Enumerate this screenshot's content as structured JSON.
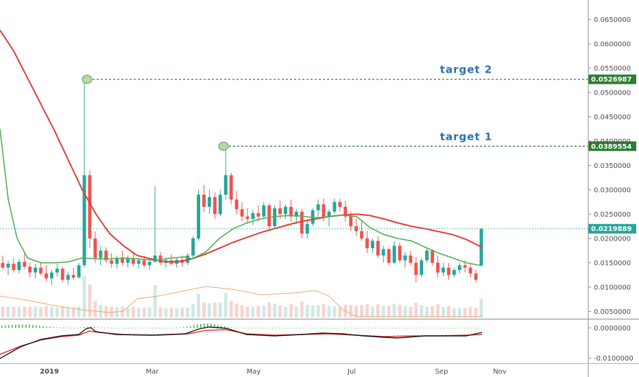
{
  "chart_data": {
    "type": "candlestick",
    "xaxis": {
      "ticks": [
        "2019",
        "Mar",
        "May",
        "Jul",
        "Sep",
        "Nov"
      ]
    },
    "price_axis": {
      "ticks": [
        "0.0650000",
        "0.0600000",
        "0.0550000",
        "0.0500000",
        "0.0450000",
        "0.0400000",
        "0.0350000",
        "0.0300000",
        "0.0250000",
        "0.0200000",
        "0.0150000",
        "0.0100000",
        "0.0050000"
      ],
      "range": [
        0.0035,
        0.069
      ]
    },
    "macd_axis": {
      "ticks": [
        "0.0000000",
        "-0.0100000"
      ]
    },
    "current_price": {
      "value": 0.0219889,
      "label": "0.0219889",
      "color": "#26a69a"
    },
    "targets": [
      {
        "name": "target 2",
        "value": 0.0526987,
        "label": "0.0526987",
        "color": "#2e7d32"
      },
      {
        "name": "target 1",
        "value": 0.0389554,
        "label": "0.0389554",
        "color": "#2e7d32"
      }
    ],
    "ma_fast_color": "#4caf50",
    "ma_slow_color": "#e53935",
    "bull_color": "#26a69a",
    "bear_color": "#ef5350",
    "candles": [
      [
        0.015,
        0.0165,
        0.0135,
        0.014
      ],
      [
        0.014,
        0.0155,
        0.0125,
        0.0148
      ],
      [
        0.0148,
        0.016,
        0.013,
        0.0135
      ],
      [
        0.0135,
        0.0158,
        0.0128,
        0.0152
      ],
      [
        0.0152,
        0.0168,
        0.0138,
        0.0142
      ],
      [
        0.0142,
        0.015,
        0.012,
        0.013
      ],
      [
        0.013,
        0.0148,
        0.0118,
        0.014
      ],
      [
        0.014,
        0.0152,
        0.0125,
        0.0128
      ],
      [
        0.0128,
        0.0145,
        0.0112,
        0.0118
      ],
      [
        0.0118,
        0.0135,
        0.0105,
        0.013
      ],
      [
        0.013,
        0.0148,
        0.0122,
        0.0138
      ],
      [
        0.0138,
        0.0142,
        0.011,
        0.0115
      ],
      [
        0.0115,
        0.0132,
        0.0105,
        0.0125
      ],
      [
        0.0125,
        0.014,
        0.0115,
        0.012
      ],
      [
        0.012,
        0.015,
        0.0118,
        0.0145
      ],
      [
        0.0145,
        0.0528,
        0.014,
        0.033
      ],
      [
        0.033,
        0.034,
        0.018,
        0.02
      ],
      [
        0.02,
        0.0215,
        0.015,
        0.016
      ],
      [
        0.016,
        0.0185,
        0.0145,
        0.0175
      ],
      [
        0.0175,
        0.0182,
        0.015,
        0.0155
      ],
      [
        0.0155,
        0.017,
        0.014,
        0.0148
      ],
      [
        0.0148,
        0.0165,
        0.0138,
        0.016
      ],
      [
        0.016,
        0.0175,
        0.0145,
        0.015
      ],
      [
        0.015,
        0.0165,
        0.014,
        0.0158
      ],
      [
        0.0158,
        0.0172,
        0.0142,
        0.0148
      ],
      [
        0.0148,
        0.016,
        0.0138,
        0.0155
      ],
      [
        0.0155,
        0.0165,
        0.014,
        0.0145
      ],
      [
        0.0145,
        0.016,
        0.0135,
        0.0152
      ],
      [
        0.0152,
        0.0308,
        0.015,
        0.0165
      ],
      [
        0.0165,
        0.0172,
        0.0145,
        0.015
      ],
      [
        0.015,
        0.0162,
        0.014,
        0.0155
      ],
      [
        0.0155,
        0.0168,
        0.0145,
        0.0148
      ],
      [
        0.0148,
        0.016,
        0.014,
        0.0156
      ],
      [
        0.0156,
        0.0165,
        0.0142,
        0.015
      ],
      [
        0.015,
        0.017,
        0.0145,
        0.0165
      ],
      [
        0.0165,
        0.0205,
        0.016,
        0.02
      ],
      [
        0.02,
        0.03,
        0.0195,
        0.029
      ],
      [
        0.029,
        0.031,
        0.0255,
        0.0265
      ],
      [
        0.0265,
        0.03,
        0.025,
        0.0285
      ],
      [
        0.0285,
        0.0295,
        0.024,
        0.025
      ],
      [
        0.025,
        0.03,
        0.0245,
        0.029
      ],
      [
        0.029,
        0.039,
        0.028,
        0.033
      ],
      [
        0.033,
        0.0335,
        0.027,
        0.028
      ],
      [
        0.028,
        0.0298,
        0.025,
        0.026
      ],
      [
        0.026,
        0.0275,
        0.0235,
        0.0245
      ],
      [
        0.0245,
        0.0262,
        0.023,
        0.024
      ],
      [
        0.024,
        0.0258,
        0.0228,
        0.0252
      ],
      [
        0.0252,
        0.0268,
        0.0235,
        0.0245
      ],
      [
        0.0245,
        0.0275,
        0.024,
        0.0268
      ],
      [
        0.0268,
        0.0272,
        0.0215,
        0.0225
      ],
      [
        0.0225,
        0.0268,
        0.022,
        0.0262
      ],
      [
        0.0262,
        0.0278,
        0.024,
        0.025
      ],
      [
        0.025,
        0.027,
        0.024,
        0.0265
      ],
      [
        0.0265,
        0.028,
        0.0235,
        0.0245
      ],
      [
        0.0245,
        0.026,
        0.023,
        0.0255
      ],
      [
        0.0255,
        0.026,
        0.02,
        0.021
      ],
      [
        0.021,
        0.024,
        0.02,
        0.023
      ],
      [
        0.023,
        0.0262,
        0.0225,
        0.0258
      ],
      [
        0.0258,
        0.028,
        0.024,
        0.027
      ],
      [
        0.027,
        0.0282,
        0.0235,
        0.0245
      ],
      [
        0.0245,
        0.026,
        0.0225,
        0.0255
      ],
      [
        0.0255,
        0.0282,
        0.025,
        0.0275
      ],
      [
        0.0275,
        0.0282,
        0.0255,
        0.0265
      ],
      [
        0.0265,
        0.0278,
        0.0235,
        0.0245
      ],
      [
        0.0245,
        0.0255,
        0.0215,
        0.0225
      ],
      [
        0.0225,
        0.024,
        0.0205,
        0.0215
      ],
      [
        0.0215,
        0.0235,
        0.0195,
        0.02
      ],
      [
        0.02,
        0.0215,
        0.017,
        0.018
      ],
      [
        0.018,
        0.02,
        0.017,
        0.0195
      ],
      [
        0.0195,
        0.0205,
        0.016,
        0.0165
      ],
      [
        0.0165,
        0.0185,
        0.015,
        0.0178
      ],
      [
        0.0178,
        0.0182,
        0.0145,
        0.015
      ],
      [
        0.015,
        0.0195,
        0.0148,
        0.0185
      ],
      [
        0.0185,
        0.0192,
        0.015,
        0.0155
      ],
      [
        0.0155,
        0.0172,
        0.014,
        0.0165
      ],
      [
        0.0165,
        0.0175,
        0.0145,
        0.015
      ],
      [
        0.015,
        0.0162,
        0.011,
        0.0125
      ],
      [
        0.0125,
        0.016,
        0.012,
        0.0155
      ],
      [
        0.0155,
        0.018,
        0.015,
        0.0175
      ],
      [
        0.0175,
        0.0178,
        0.0145,
        0.015
      ],
      [
        0.015,
        0.0165,
        0.012,
        0.013
      ],
      [
        0.013,
        0.015,
        0.0122,
        0.014
      ],
      [
        0.014,
        0.015,
        0.0115,
        0.0125
      ],
      [
        0.0125,
        0.014,
        0.012,
        0.0135
      ],
      [
        0.0135,
        0.015,
        0.0128,
        0.0145
      ],
      [
        0.0145,
        0.0155,
        0.013,
        0.014
      ],
      [
        0.014,
        0.015,
        0.012,
        0.0128
      ],
      [
        0.0128,
        0.0135,
        0.011,
        0.0115
      ],
      [
        0.0145,
        0.022,
        0.0143,
        0.0219889
      ]
    ],
    "ma_fast": [
      [
        0,
        0.0425
      ],
      [
        12,
        0.028
      ],
      [
        25,
        0.02
      ],
      [
        40,
        0.016
      ],
      [
        60,
        0.015
      ],
      [
        80,
        0.015
      ],
      [
        100,
        0.0152
      ],
      [
        120,
        0.016
      ],
      [
        140,
        0.0158
      ],
      [
        160,
        0.0158
      ],
      [
        180,
        0.016
      ],
      [
        200,
        0.0158
      ],
      [
        230,
        0.0155
      ],
      [
        250,
        0.016
      ],
      [
        270,
        0.0162
      ],
      [
        280,
        0.0158
      ],
      [
        300,
        0.0172
      ],
      [
        320,
        0.02
      ],
      [
        340,
        0.022
      ],
      [
        360,
        0.0232
      ],
      [
        380,
        0.024
      ],
      [
        400,
        0.0245
      ],
      [
        420,
        0.0247
      ],
      [
        440,
        0.0246
      ],
      [
        460,
        0.0242
      ],
      [
        480,
        0.0245
      ],
      [
        500,
        0.0248
      ],
      [
        520,
        0.0245
      ],
      [
        540,
        0.0222
      ],
      [
        560,
        0.0208
      ],
      [
        580,
        0.02
      ],
      [
        600,
        0.0195
      ],
      [
        620,
        0.0182
      ],
      [
        640,
        0.017
      ],
      [
        660,
        0.016
      ],
      [
        680,
        0.015
      ],
      [
        703,
        0.0144
      ]
    ],
    "ma_slow": [
      [
        0,
        0.0628
      ],
      [
        20,
        0.0585
      ],
      [
        40,
        0.053
      ],
      [
        60,
        0.0475
      ],
      [
        80,
        0.042
      ],
      [
        100,
        0.036
      ],
      [
        120,
        0.03
      ],
      [
        140,
        0.025
      ],
      [
        160,
        0.021
      ],
      [
        180,
        0.0185
      ],
      [
        200,
        0.0165
      ],
      [
        220,
        0.0158
      ],
      [
        240,
        0.0152
      ],
      [
        260,
        0.0152
      ],
      [
        280,
        0.0158
      ],
      [
        300,
        0.0168
      ],
      [
        320,
        0.018
      ],
      [
        340,
        0.0192
      ],
      [
        360,
        0.0202
      ],
      [
        380,
        0.0212
      ],
      [
        400,
        0.022
      ],
      [
        420,
        0.0228
      ],
      [
        440,
        0.0235
      ],
      [
        460,
        0.024
      ],
      [
        480,
        0.0245
      ],
      [
        500,
        0.0248
      ],
      [
        520,
        0.025
      ],
      [
        540,
        0.0247
      ],
      [
        560,
        0.024
      ],
      [
        580,
        0.0232
      ],
      [
        600,
        0.0225
      ],
      [
        620,
        0.022
      ],
      [
        640,
        0.0214
      ],
      [
        660,
        0.0208
      ],
      [
        680,
        0.0198
      ],
      [
        703,
        0.0182
      ]
    ]
  }
}
